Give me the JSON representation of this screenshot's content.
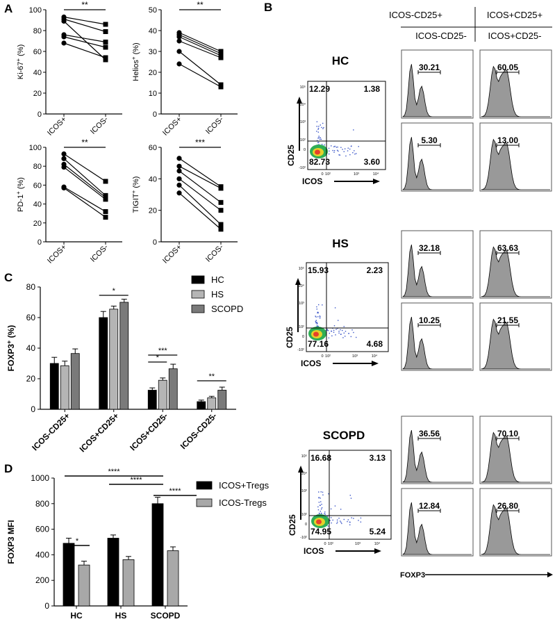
{
  "panels": {
    "a": "A",
    "b": "B",
    "c": "C",
    "d": "D"
  },
  "panel_a": {
    "plots": [
      {
        "ylabel": "Ki-67",
        "ylabel_suffix": " (%)",
        "ylim": [
          0,
          100
        ],
        "ticks": [
          0,
          20,
          40,
          60,
          80,
          100
        ],
        "xticks": [
          "ICOS+",
          "ICOS-"
        ],
        "sig": "**",
        "pairs": [
          [
            93,
            86
          ],
          [
            91,
            79
          ],
          [
            76,
            69
          ],
          [
            74,
            64
          ],
          [
            68,
            54
          ],
          [
            89,
            52
          ]
        ]
      },
      {
        "ylabel": "Helios",
        "ylabel_suffix": " (%)",
        "ylim": [
          0,
          50
        ],
        "ticks": [
          0,
          10,
          20,
          30,
          40,
          50
        ],
        "xticks": [
          "ICOS+",
          "ICOS-"
        ],
        "sig": "**",
        "pairs": [
          [
            39,
            30
          ],
          [
            38,
            29
          ],
          [
            37,
            28
          ],
          [
            35,
            27
          ],
          [
            30,
            14
          ],
          [
            24,
            13
          ]
        ]
      },
      {
        "ylabel": "PD-1",
        "ylabel_suffix": " (%)",
        "ylim": [
          0,
          100
        ],
        "ticks": [
          0,
          20,
          40,
          60,
          80,
          100
        ],
        "xticks": [
          "ICOS+",
          "ICOS-"
        ],
        "sig": "**",
        "pairs": [
          [
            93,
            64
          ],
          [
            88,
            49
          ],
          [
            82,
            47
          ],
          [
            79,
            45
          ],
          [
            58,
            32
          ],
          [
            57,
            26
          ]
        ]
      },
      {
        "ylabel": "TIGIT",
        "ylabel_suffix": " (%)",
        "ylim": [
          0,
          60
        ],
        "ticks": [
          0,
          20,
          40,
          60
        ],
        "xticks": [
          "ICOS+",
          "ICOS-"
        ],
        "sig": "***",
        "pairs": [
          [
            53,
            35
          ],
          [
            48,
            34
          ],
          [
            45,
            25
          ],
          [
            40,
            20
          ],
          [
            36,
            11
          ],
          [
            31,
            8
          ]
        ]
      }
    ]
  },
  "chart_data": [
    {
      "type": "bar",
      "title": "",
      "ylabel": "FOXP3",
      "ylabel_suffix": " (%)",
      "ylim": [
        0,
        80
      ],
      "yticks": [
        0,
        20,
        40,
        60,
        80
      ],
      "categories": [
        "ICOS-CD25+",
        "ICOS+CD25+",
        "ICOS+CD25-",
        "ICOS-CD25-"
      ],
      "series": [
        {
          "name": "HC",
          "color": "#000000",
          "values": [
            30,
            60,
            12.5,
            5
          ],
          "errors": [
            4,
            4,
            1.5,
            1
          ]
        },
        {
          "name": "HS",
          "color": "#b5b5b5",
          "values": [
            28.5,
            65.5,
            19,
            7.5
          ],
          "errors": [
            3,
            2,
            1.5,
            1
          ]
        },
        {
          "name": "SCOPD",
          "color": "#7a7a7a",
          "values": [
            36.5,
            70,
            26.5,
            12.5
          ],
          "errors": [
            3,
            2,
            3,
            2
          ]
        }
      ],
      "significance": [
        {
          "from": 1,
          "to": 1,
          "label": "*"
        },
        {
          "from": 2,
          "to": 2,
          "label": "***"
        },
        {
          "from": 2,
          "to": 2,
          "label": "*"
        },
        {
          "from": 3,
          "to": 3,
          "label": "**"
        }
      ]
    },
    {
      "type": "bar",
      "title": "",
      "ylabel": "FOXP3 MFI",
      "ylim": [
        0,
        1000
      ],
      "yticks": [
        0,
        200,
        400,
        600,
        800,
        1000
      ],
      "categories": [
        "HC",
        "HS",
        "SCOPD"
      ],
      "series": [
        {
          "name": "ICOS+Tregs",
          "color": "#000000",
          "values": [
            490,
            530,
            800
          ],
          "errors": [
            40,
            25,
            50
          ]
        },
        {
          "name": "ICOS-Tregs",
          "color": "#a8a8a8",
          "values": [
            320,
            362,
            432
          ],
          "errors": [
            30,
            25,
            30
          ]
        }
      ],
      "significance": [
        {
          "label": "****"
        },
        {
          "label": "****"
        },
        {
          "label": "****"
        },
        {
          "label": "*"
        }
      ]
    }
  ],
  "panel_b": {
    "col_headers_top": [
      "ICOS-CD25+",
      "ICOS+CD25+"
    ],
    "col_headers_bottom": [
      "ICOS-CD25-",
      "ICOS+CD25-"
    ],
    "x_axis": "ICOS",
    "y_axis": "CD25",
    "hist_axis": "FOXP3",
    "tick_labels": {
      "x": [
        "0",
        "10²",
        "10³",
        "10⁴"
      ],
      "y": [
        "10⁵",
        "10⁴",
        "10³",
        "10²",
        "0",
        "-10²"
      ]
    },
    "groups": [
      {
        "name": "HC",
        "quadrants": {
          "ul": "12.29",
          "ur": "1.38",
          "ll": "82.73",
          "lr": "3.60"
        },
        "hist": {
          "ul": "30.21",
          "ur": "60.05",
          "ll": "5.30",
          "lr": "13.00"
        }
      },
      {
        "name": "HS",
        "quadrants": {
          "ul": "15.93",
          "ur": "2.23",
          "ll": "77.16",
          "lr": "4.68"
        },
        "hist": {
          "ul": "32.18",
          "ur": "63.63",
          "ll": "10.25",
          "lr": "21.55"
        }
      },
      {
        "name": "SCOPD",
        "quadrants": {
          "ul": "16.68",
          "ur": "3.13",
          "ll": "74.95",
          "lr": "5.24"
        },
        "hist": {
          "ul": "36.56",
          "ur": "70.10",
          "ll": "12.84",
          "lr": "26.80"
        }
      }
    ]
  }
}
